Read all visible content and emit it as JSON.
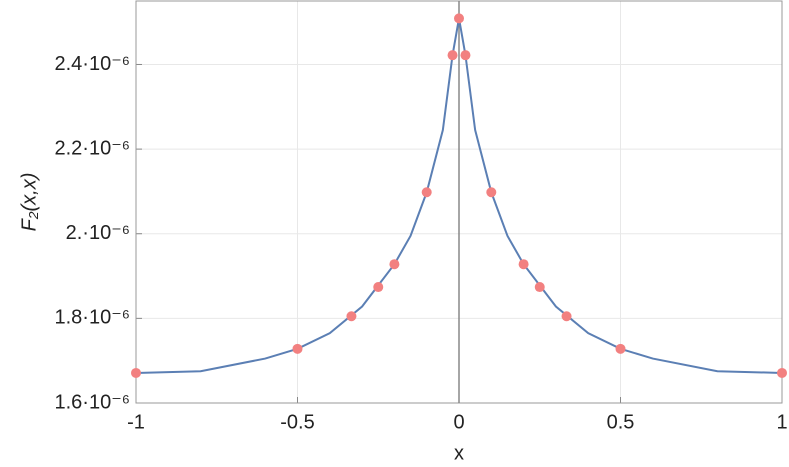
{
  "chart_data": {
    "type": "scatter",
    "x_label": "x",
    "y_label": "F₂(x,x)",
    "xlim": [
      -1,
      1
    ],
    "ylim": [
      1.6e-06,
      2.55e-06
    ],
    "xticks": [
      -1,
      -0.5,
      0,
      0.5,
      1
    ],
    "yticks": [
      {
        "value": 1.6e-06,
        "label": "1.6·10⁻⁶"
      },
      {
        "value": 1.8e-06,
        "label": "1.8·10⁻⁶"
      },
      {
        "value": 2e-06,
        "label": "2.·10⁻⁶"
      },
      {
        "value": 2.2e-06,
        "label": "2.2·10⁻⁶"
      },
      {
        "value": 2.4e-06,
        "label": "2.4·10⁻⁶"
      }
    ],
    "grid": true,
    "curve": {
      "color": "#5b7fb4",
      "x": [
        -1,
        -0.8,
        -0.6,
        -0.5,
        -0.4,
        -0.3,
        -0.2,
        -0.15,
        -0.1,
        -0.05,
        -0.02,
        0,
        0.02,
        0.05,
        0.1,
        0.15,
        0.2,
        0.3,
        0.4,
        0.5,
        0.6,
        0.8,
        1
      ],
      "values": [
        1.671e-06,
        1.675e-06,
        1.705e-06,
        1.728e-06,
        1.765e-06,
        1.828e-06,
        1.928e-06,
        1.995e-06,
        2.098e-06,
        2.245e-06,
        2.422e-06,
        2.509e-06,
        2.422e-06,
        2.245e-06,
        2.098e-06,
        1.995e-06,
        1.928e-06,
        1.828e-06,
        1.765e-06,
        1.728e-06,
        1.705e-06,
        1.675e-06,
        1.671e-06
      ]
    },
    "points": {
      "color": "#f28080",
      "x": [
        -1,
        -0.5,
        -0.333,
        -0.25,
        -0.2,
        -0.1,
        -0.02,
        0,
        0.02,
        0.1,
        0.2,
        0.25,
        0.333,
        0.5,
        1
      ],
      "values": [
        1.671e-06,
        1.728e-06,
        1.805e-06,
        1.874e-06,
        1.928e-06,
        2.098e-06,
        2.422e-06,
        2.509e-06,
        2.422e-06,
        2.098e-06,
        1.928e-06,
        1.874e-06,
        1.805e-06,
        1.728e-06,
        1.671e-06
      ]
    }
  }
}
